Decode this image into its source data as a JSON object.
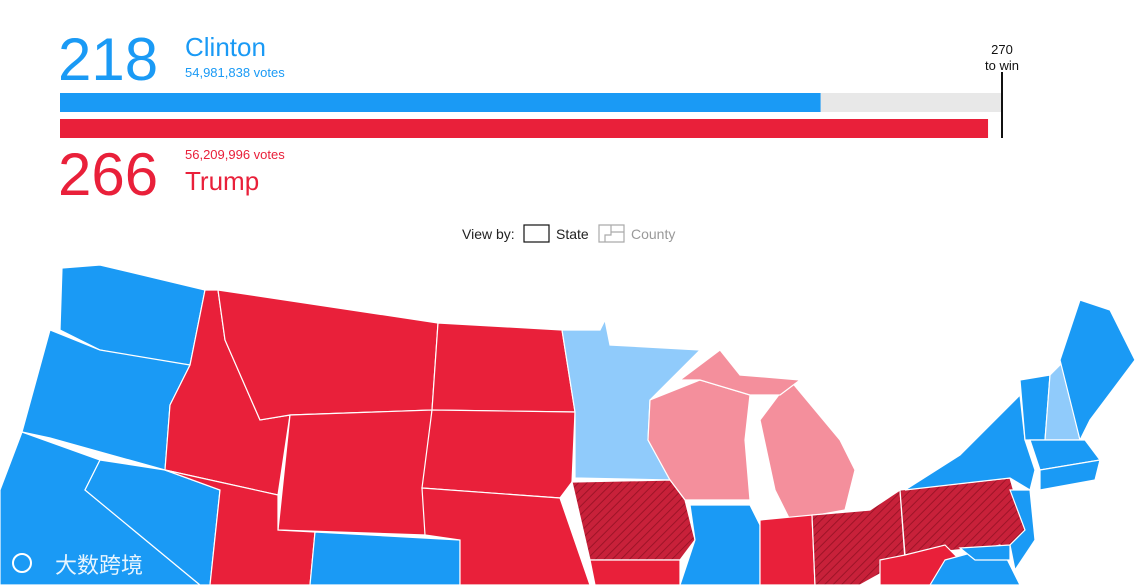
{
  "results": {
    "candidates": [
      {
        "name": "Clinton",
        "electoral_votes": 218,
        "votes_label": "54,981,838 votes",
        "color": "#1a9af5"
      },
      {
        "name": "Trump",
        "electoral_votes": 266,
        "votes_label": "56,209,996 votes",
        "color": "#e9203a"
      }
    ],
    "threshold": {
      "value": 270,
      "label": "to win"
    }
  },
  "view_by": {
    "label": "View by:",
    "options": [
      "State",
      "County"
    ]
  },
  "watermark": "大数跨境"
}
